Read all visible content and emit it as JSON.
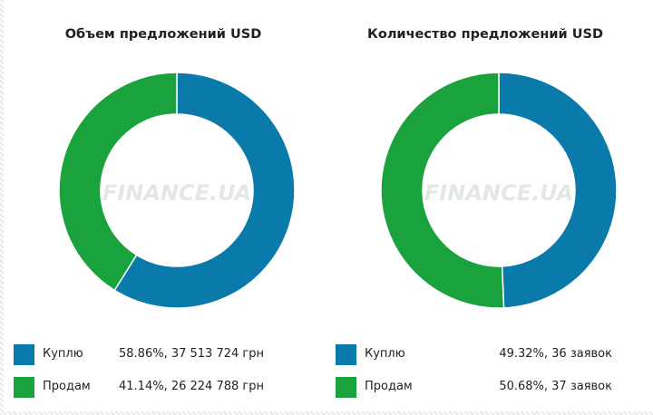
{
  "watermark": "FINANCE.UA",
  "chart_data": [
    {
      "type": "pie",
      "title": "Объем предложений USD",
      "colors": [
        "#0a7aaa",
        "#1aa23c"
      ],
      "series": [
        {
          "name": "Куплю",
          "value": 58.86,
          "text": "58.86%, 37 513 724 грн"
        },
        {
          "name": "Продам",
          "value": 41.14,
          "text": "41.14%, 26 224 788 грн"
        }
      ]
    },
    {
      "type": "pie",
      "title": "Количество предложений USD",
      "colors": [
        "#0a7aaa",
        "#1aa23c"
      ],
      "series": [
        {
          "name": "Куплю",
          "value": 49.32,
          "text": "49.32%, 36 заявок"
        },
        {
          "name": "Продам",
          "value": 50.68,
          "text": "50.68%, 37 заявок"
        }
      ]
    }
  ]
}
